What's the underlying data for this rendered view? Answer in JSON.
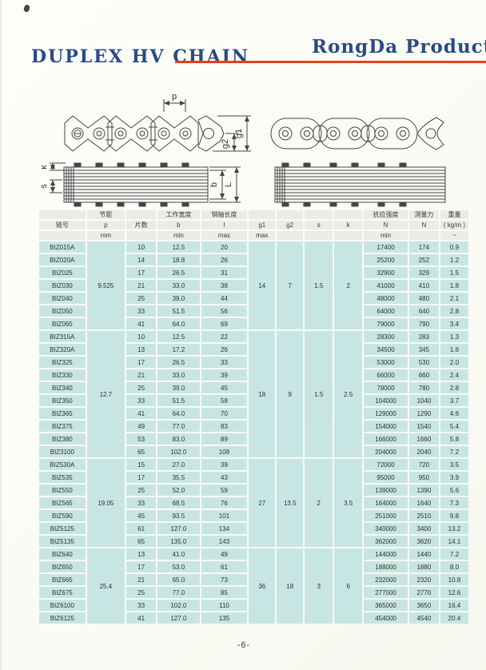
{
  "page": {
    "title": "DUPLEX HV CHAIN",
    "brand": "RongDa Product",
    "page_number": "-6-"
  },
  "colors": {
    "title_blue": "#2a4a85",
    "accent_red": "#e0441c",
    "header_cell_bg": "#e9ece7",
    "data_cell_bg": "#c7e6e3"
  },
  "diagram": {
    "dim_p": "p",
    "dim_g1": "g1",
    "dim_g2": "g2",
    "dim_k": "k",
    "dim_s": "s",
    "dim_b": "b",
    "dim_L": "L"
  },
  "table": {
    "header_rows": [
      [
        "",
        "节距",
        "",
        "工作宽度",
        "销轴长度",
        "",
        "",
        "",
        "",
        "抗拉强度",
        "测量力",
        "重量"
      ],
      [
        "链号",
        "p",
        "片数",
        "b",
        "l",
        "g1",
        "g2",
        "s",
        "k",
        "N",
        "N",
        "( kg/m )"
      ],
      [
        "",
        "mm",
        "",
        "min",
        "max",
        "max",
        "",
        "",
        "",
        "min",
        "",
        "~"
      ]
    ],
    "groups": [
      {
        "p": "9.525",
        "g1": "14",
        "g2": "7",
        "s": "1.5",
        "k": "2",
        "rows": [
          {
            "model": "BIZ015A",
            "plates": "10",
            "b": "12.5",
            "l": "20",
            "strength": "17400",
            "force": "174",
            "weight": "0.9"
          },
          {
            "model": "BIZ020A",
            "plates": "14",
            "b": "18.8",
            "l": "26",
            "strength": "25200",
            "force": "252",
            "weight": "1.2"
          },
          {
            "model": "BIZ025",
            "plates": "17",
            "b": "26.5",
            "l": "31",
            "strength": "32900",
            "force": "329",
            "weight": "1.5"
          },
          {
            "model": "BIZ030",
            "plates": "21",
            "b": "33.0",
            "l": "38",
            "strength": "41000",
            "force": "410",
            "weight": "1.8"
          },
          {
            "model": "BIZ040",
            "plates": "25",
            "b": "39.0",
            "l": "44",
            "strength": "48000",
            "force": "480",
            "weight": "2.1"
          },
          {
            "model": "BIZ050",
            "plates": "33",
            "b": "51.5",
            "l": "56",
            "strength": "64000",
            "force": "640",
            "weight": "2.8"
          },
          {
            "model": "BIZ065",
            "plates": "41",
            "b": "64.0",
            "l": "69",
            "strength": "79000",
            "force": "790",
            "weight": "3.4"
          }
        ]
      },
      {
        "p": "12.7",
        "g1": "18",
        "g2": "9",
        "s": "1.5",
        "k": "2.5",
        "rows": [
          {
            "model": "BIZ315A",
            "plates": "10",
            "b": "12.5",
            "l": "22",
            "strength": "28300",
            "force": "283",
            "weight": "1.3"
          },
          {
            "model": "BIZ320A",
            "plates": "13",
            "b": "17.2",
            "l": "26",
            "strength": "34500",
            "force": "345",
            "weight": "1.6"
          },
          {
            "model": "BIZ325",
            "plates": "17",
            "b": "26.5",
            "l": "33",
            "strength": "53000",
            "force": "530",
            "weight": "2.0"
          },
          {
            "model": "BIZ330",
            "plates": "21",
            "b": "33.0",
            "l": "39",
            "strength": "66000",
            "force": "660",
            "weight": "2.4"
          },
          {
            "model": "BIZ340",
            "plates": "25",
            "b": "39.0",
            "l": "45",
            "strength": "78000",
            "force": "780",
            "weight": "2.8"
          },
          {
            "model": "BIZ350",
            "plates": "33",
            "b": "51.5",
            "l": "58",
            "strength": "104000",
            "force": "1040",
            "weight": "3.7"
          },
          {
            "model": "BIZ365",
            "plates": "41",
            "b": "64.0",
            "l": "70",
            "strength": "129000",
            "force": "1290",
            "weight": "4.6"
          },
          {
            "model": "BIZ375",
            "plates": "49",
            "b": "77.0",
            "l": "83",
            "strength": "154000",
            "force": "1540",
            "weight": "5.4"
          },
          {
            "model": "BIZ380",
            "plates": "53",
            "b": "83.0",
            "l": "89",
            "strength": "166000",
            "force": "1660",
            "weight": "5.8"
          },
          {
            "model": "BIZ3100",
            "plates": "65",
            "b": "102.0",
            "l": "108",
            "strength": "204000",
            "force": "2040",
            "weight": "7.2"
          }
        ]
      },
      {
        "p": "19.05",
        "g1": "27",
        "g2": "13.5",
        "s": "2",
        "k": "3.5",
        "rows": [
          {
            "model": "BIZ530A",
            "plates": "15",
            "b": "27.0",
            "l": "39",
            "strength": "72000",
            "force": "720",
            "weight": "3.5"
          },
          {
            "model": "BIZ535",
            "plates": "17",
            "b": "35.5",
            "l": "43",
            "strength": "95000",
            "force": "950",
            "weight": "3.9"
          },
          {
            "model": "BIZ550",
            "plates": "25",
            "b": "52.0",
            "l": "59",
            "strength": "139000",
            "force": "1390",
            "weight": "5.6"
          },
          {
            "model": "BIZ565",
            "plates": "33",
            "b": "68.5",
            "l": "76",
            "strength": "164000",
            "force": "1640",
            "weight": "7.3"
          },
          {
            "model": "BIZ590",
            "plates": "45",
            "b": "93.5",
            "l": "101",
            "strength": "251000",
            "force": "2510",
            "weight": "9.8"
          },
          {
            "model": "BIZ5125",
            "plates": "61",
            "b": "127.0",
            "l": "134",
            "strength": "340000",
            "force": "3400",
            "weight": "13.2"
          },
          {
            "model": "BIZ5135",
            "plates": "65",
            "b": "135.0",
            "l": "143",
            "strength": "362000",
            "force": "3620",
            "weight": "14.1"
          }
        ]
      },
      {
        "p": "25.4",
        "g1": "36",
        "g2": "18",
        "s": "3",
        "k": "6",
        "rows": [
          {
            "model": "BIZ640",
            "plates": "13",
            "b": "41.0",
            "l": "49",
            "strength": "144000",
            "force": "1440",
            "weight": "7.2"
          },
          {
            "model": "BIZ650",
            "plates": "17",
            "b": "53.0",
            "l": "61",
            "strength": "188000",
            "force": "1880",
            "weight": "8.0"
          },
          {
            "model": "BIZ665",
            "plates": "21",
            "b": "65.0",
            "l": "73",
            "strength": "232000",
            "force": "2320",
            "weight": "10.8"
          },
          {
            "model": "BIZ675",
            "plates": "25",
            "b": "77.0",
            "l": "85",
            "strength": "277000",
            "force": "2770",
            "weight": "12.6"
          },
          {
            "model": "BIZ6100",
            "plates": "33",
            "b": "102.0",
            "l": "110",
            "strength": "365000",
            "force": "3650",
            "weight": "16.4"
          },
          {
            "model": "BIZ6125",
            "plates": "41",
            "b": "127.0",
            "l": "135",
            "strength": "454000",
            "force": "4540",
            "weight": "20.4"
          }
        ]
      }
    ]
  }
}
